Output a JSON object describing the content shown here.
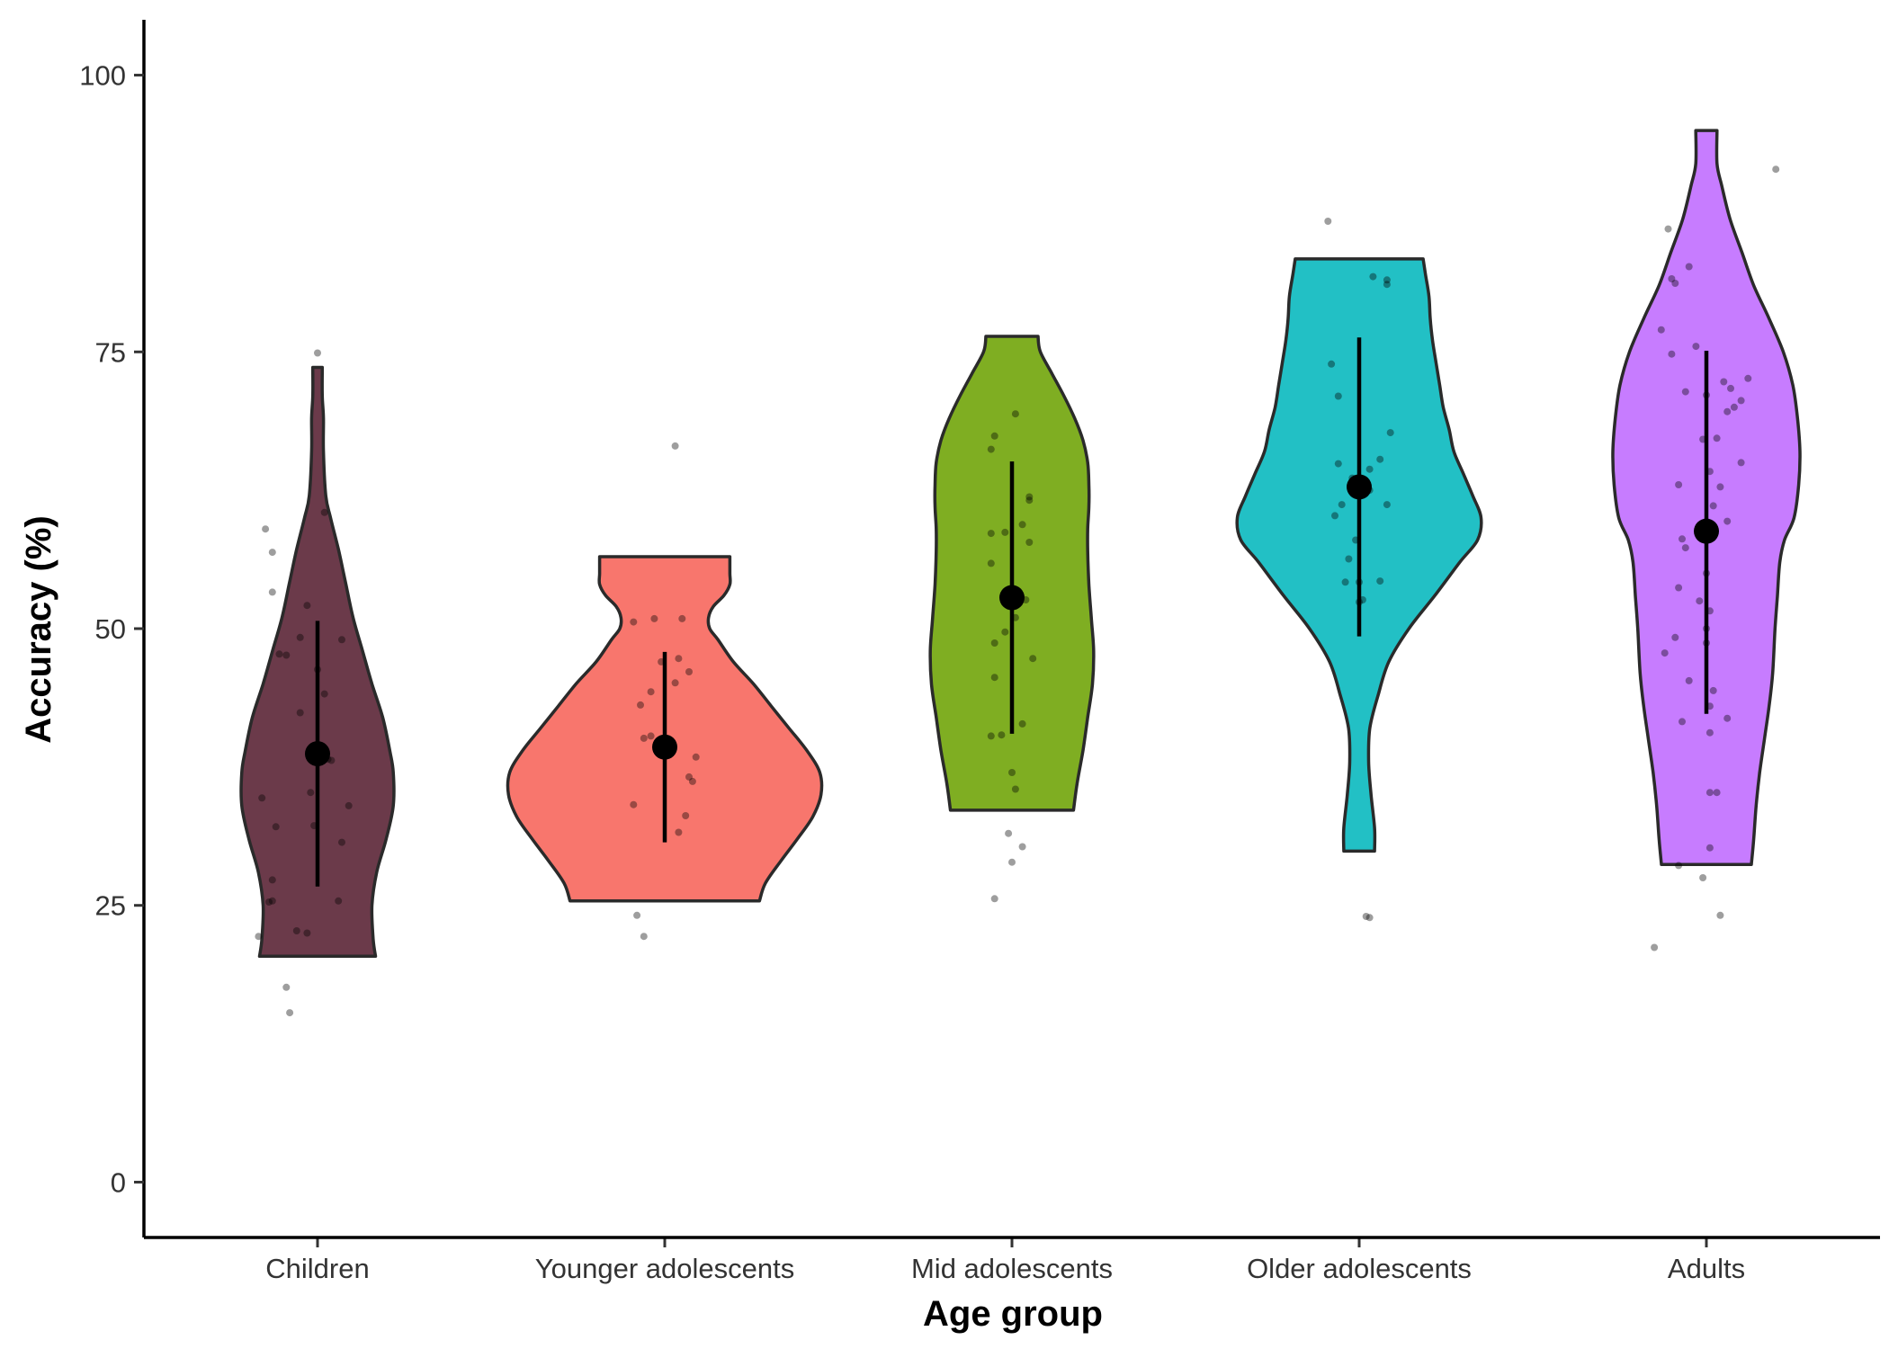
{
  "chart_data": {
    "type": "violin",
    "title": "",
    "xlabel": "Age group",
    "ylabel": "Accuracy (%)",
    "ylim": [
      -5,
      105
    ],
    "yticks": [
      0,
      25,
      50,
      75,
      100
    ],
    "grid": false,
    "legend": "none",
    "categories": [
      "Children",
      "Younger adolescents",
      "Mid adolescents",
      "Older adolescents",
      "Adults"
    ],
    "series": [
      {
        "category": "Children",
        "color": "#6B3A4A",
        "mean": 38.7,
        "error_low": 26.7,
        "error_high": 50.7,
        "violin_range": [
          20.4,
          73.6
        ],
        "density": [
          [
            20.4,
            49
          ],
          [
            22,
            47
          ],
          [
            25,
            46
          ],
          [
            28,
            50
          ],
          [
            31,
            58
          ],
          [
            34,
            64
          ],
          [
            37,
            64
          ],
          [
            39,
            61
          ],
          [
            42,
            55
          ],
          [
            45,
            46
          ],
          [
            48,
            38
          ],
          [
            51,
            30
          ],
          [
            54,
            24
          ],
          [
            57,
            18
          ],
          [
            60,
            11
          ],
          [
            62,
            7
          ],
          [
            66,
            5
          ],
          [
            69,
            5
          ],
          [
            71,
            4
          ],
          [
            73.6,
            4
          ]
        ],
        "points": [
          [
            -0.08,
            15.3
          ],
          [
            -0.09,
            17.6
          ],
          [
            -0.17,
            22.2
          ],
          [
            -0.06,
            22.7
          ],
          [
            -0.03,
            22.5
          ],
          [
            -0.14,
            25.3
          ],
          [
            -0.13,
            25.4
          ],
          [
            0.06,
            25.4
          ],
          [
            -0.13,
            27.3
          ],
          [
            0.07,
            30.7
          ],
          [
            -0.12,
            32.1
          ],
          [
            -0.01,
            32.2
          ],
          [
            -0.16,
            34.7
          ],
          [
            0.09,
            34.0
          ],
          [
            -0.02,
            35.2
          ],
          [
            0.04,
            38.1
          ],
          [
            0.03,
            38.2
          ],
          [
            -0.05,
            42.4
          ],
          [
            0.02,
            44.1
          ],
          [
            -0.09,
            47.6
          ],
          [
            -0.11,
            47.7
          ],
          [
            0.0,
            46.3
          ],
          [
            -0.05,
            49.2
          ],
          [
            0.07,
            49.0
          ],
          [
            -0.03,
            52.1
          ],
          [
            -0.13,
            53.3
          ],
          [
            -0.13,
            56.9
          ],
          [
            -0.15,
            59.0
          ],
          [
            0.02,
            60.5
          ],
          [
            0.0,
            74.9
          ]
        ]
      },
      {
        "category": "Younger adolescents",
        "color": "#F8766D",
        "mean": 39.3,
        "error_low": 30.7,
        "error_high": 47.9,
        "violin_range": [
          25.4,
          56.5
        ],
        "density": [
          [
            25.4,
            80
          ],
          [
            27,
            85
          ],
          [
            29,
            98
          ],
          [
            31,
            112
          ],
          [
            33,
            125
          ],
          [
            35,
            132
          ],
          [
            37,
            131
          ],
          [
            39,
            120
          ],
          [
            41,
            105
          ],
          [
            43,
            90
          ],
          [
            45,
            75
          ],
          [
            47,
            58
          ],
          [
            49,
            45
          ],
          [
            50,
            38
          ],
          [
            51,
            37
          ],
          [
            52,
            41
          ],
          [
            53,
            50
          ],
          [
            54,
            55
          ],
          [
            55,
            55
          ],
          [
            56.5,
            55
          ]
        ],
        "points": [
          [
            -0.06,
            22.2
          ],
          [
            -0.08,
            24.1
          ],
          [
            0.04,
            31.6
          ],
          [
            0.06,
            33.1
          ],
          [
            -0.09,
            34.1
          ],
          [
            0.08,
            36.2
          ],
          [
            0.07,
            36.6
          ],
          [
            0.09,
            38.4
          ],
          [
            -0.06,
            40.1
          ],
          [
            -0.04,
            40.3
          ],
          [
            -0.02,
            39.7
          ],
          [
            0.0,
            39.9
          ],
          [
            -0.07,
            43.1
          ],
          [
            -0.04,
            44.3
          ],
          [
            0.03,
            45.1
          ],
          [
            0.07,
            46.1
          ],
          [
            -0.01,
            47.0
          ],
          [
            0.04,
            47.3
          ],
          [
            -0.03,
            50.9
          ],
          [
            -0.09,
            50.6
          ],
          [
            0.05,
            50.9
          ],
          [
            0.03,
            66.5
          ]
        ]
      },
      {
        "category": "Mid adolescents",
        "color": "#7FAE22",
        "mean": 52.8,
        "error_low": 40.5,
        "error_high": 65.1,
        "violin_range": [
          33.6,
          76.4
        ],
        "density": [
          [
            33.6,
            52
          ],
          [
            36,
            55
          ],
          [
            39,
            60
          ],
          [
            42,
            64
          ],
          [
            45,
            68
          ],
          [
            48,
            69
          ],
          [
            51,
            67
          ],
          [
            54,
            65
          ],
          [
            57,
            64
          ],
          [
            59,
            64
          ],
          [
            61,
            65
          ],
          [
            63,
            65
          ],
          [
            65,
            64
          ],
          [
            67,
            60
          ],
          [
            69,
            53
          ],
          [
            71,
            44
          ],
          [
            73,
            34
          ],
          [
            75,
            24
          ],
          [
            76.4,
            22
          ]
        ],
        "points": [
          [
            -0.05,
            25.6
          ],
          [
            0.0,
            28.9
          ],
          [
            0.03,
            30.3
          ],
          [
            -0.01,
            31.5
          ],
          [
            0.01,
            35.5
          ],
          [
            0.0,
            37.0
          ],
          [
            -0.06,
            40.3
          ],
          [
            -0.03,
            40.4
          ],
          [
            0.03,
            41.4
          ],
          [
            -0.05,
            45.6
          ],
          [
            0.06,
            47.3
          ],
          [
            -0.05,
            48.7
          ],
          [
            -0.02,
            49.7
          ],
          [
            0.01,
            51.0
          ],
          [
            0.04,
            52.6
          ],
          [
            -0.01,
            53.5
          ],
          [
            -0.06,
            55.9
          ],
          [
            0.05,
            57.8
          ],
          [
            -0.06,
            58.6
          ],
          [
            -0.02,
            58.7
          ],
          [
            0.03,
            59.4
          ],
          [
            0.05,
            61.6
          ],
          [
            0.05,
            61.9
          ],
          [
            -0.06,
            66.2
          ],
          [
            -0.05,
            67.4
          ],
          [
            0.01,
            69.4
          ]
        ]
      },
      {
        "category": "Older adolescents",
        "color": "#22C0C5",
        "mean": 62.8,
        "error_low": 49.3,
        "error_high": 76.3,
        "violin_range": [
          29.9,
          83.4
        ],
        "density": [
          [
            29.9,
            13
          ],
          [
            32,
            13
          ],
          [
            35,
            10
          ],
          [
            38,
            8
          ],
          [
            41,
            9
          ],
          [
            44,
            16
          ],
          [
            47,
            25
          ],
          [
            50,
            42
          ],
          [
            53,
            64
          ],
          [
            56,
            85
          ],
          [
            58,
            100
          ],
          [
            60,
            103
          ],
          [
            62,
            96
          ],
          [
            64,
            88
          ],
          [
            66,
            80
          ],
          [
            68,
            76
          ],
          [
            70,
            71
          ],
          [
            72,
            68
          ],
          [
            74,
            65
          ],
          [
            76,
            62
          ],
          [
            78,
            60
          ],
          [
            80,
            59
          ],
          [
            82,
            56
          ],
          [
            83.4,
            54
          ]
        ],
        "points": [
          [
            0.02,
            24.0
          ],
          [
            0.03,
            23.9
          ],
          [
            0.06,
            54.3
          ],
          [
            -0.04,
            54.2
          ],
          [
            0.0,
            52.4
          ],
          [
            0.01,
            52.6
          ],
          [
            0.0,
            54.2
          ],
          [
            -0.03,
            56.3
          ],
          [
            -0.01,
            58.0
          ],
          [
            -0.07,
            60.2
          ],
          [
            0.08,
            61.2
          ],
          [
            -0.05,
            61.2
          ],
          [
            0.03,
            62.5
          ],
          [
            -0.02,
            63.6
          ],
          [
            0.03,
            64.4
          ],
          [
            -0.06,
            64.9
          ],
          [
            0.06,
            65.3
          ],
          [
            0.09,
            67.7
          ],
          [
            -0.06,
            71.0
          ],
          [
            -0.08,
            73.9
          ],
          [
            0.08,
            81.1
          ],
          [
            0.08,
            81.5
          ],
          [
            0.04,
            81.8
          ],
          [
            -0.09,
            86.8
          ]
        ]
      },
      {
        "category": "Adults",
        "color": "#C77CFF",
        "mean": 58.8,
        "error_low": 42.3,
        "error_high": 75.1,
        "violin_range": [
          28.7,
          95.0
        ],
        "density": [
          [
            28.7,
            38
          ],
          [
            31,
            40
          ],
          [
            34,
            42
          ],
          [
            37,
            45
          ],
          [
            40,
            49
          ],
          [
            43,
            53
          ],
          [
            46,
            56
          ],
          [
            50,
            58
          ],
          [
            53,
            60
          ],
          [
            56,
            62
          ],
          [
            58,
            66
          ],
          [
            60,
            74
          ],
          [
            63,
            78
          ],
          [
            66,
            79
          ],
          [
            69,
            77
          ],
          [
            72,
            73
          ],
          [
            75,
            65
          ],
          [
            78,
            53
          ],
          [
            81,
            40
          ],
          [
            84,
            30
          ],
          [
            87,
            20
          ],
          [
            90,
            13
          ],
          [
            92,
            9
          ],
          [
            95,
            9
          ]
        ],
        "points": [
          [
            -0.15,
            21.2
          ],
          [
            0.04,
            24.1
          ],
          [
            -0.08,
            28.6
          ],
          [
            -0.01,
            27.5
          ],
          [
            0.01,
            30.2
          ],
          [
            0.01,
            35.2
          ],
          [
            0.03,
            35.2
          ],
          [
            0.01,
            40.6
          ],
          [
            -0.07,
            41.6
          ],
          [
            0.06,
            41.9
          ],
          [
            0.01,
            43.0
          ],
          [
            0.02,
            44.4
          ],
          [
            -0.05,
            45.3
          ],
          [
            -0.12,
            47.8
          ],
          [
            0.0,
            48.7
          ],
          [
            -0.09,
            49.2
          ],
          [
            0.0,
            50.0
          ],
          [
            0.01,
            51.6
          ],
          [
            -0.08,
            53.7
          ],
          [
            -0.02,
            52.5
          ],
          [
            0.0,
            55.0
          ],
          [
            -0.06,
            57.3
          ],
          [
            -0.07,
            58.1
          ],
          [
            0.01,
            58.7
          ],
          [
            0.06,
            59.7
          ],
          [
            0.02,
            61.1
          ],
          [
            0.04,
            62.8
          ],
          [
            -0.08,
            63.0
          ],
          [
            0.01,
            64.2
          ],
          [
            0.1,
            65.0
          ],
          [
            -0.01,
            67.1
          ],
          [
            0.03,
            67.2
          ],
          [
            0.06,
            69.6
          ],
          [
            0.08,
            70.0
          ],
          [
            0.1,
            70.6
          ],
          [
            0.07,
            71.7
          ],
          [
            -0.06,
            71.4
          ],
          [
            0.0,
            71.1
          ],
          [
            0.12,
            72.6
          ],
          [
            0.05,
            72.3
          ],
          [
            -0.03,
            75.5
          ],
          [
            -0.1,
            74.8
          ],
          [
            -0.13,
            77.0
          ],
          [
            -0.09,
            81.2
          ],
          [
            -0.1,
            81.6
          ],
          [
            -0.05,
            82.7
          ],
          [
            -0.11,
            86.1
          ],
          [
            0.2,
            91.5
          ]
        ]
      }
    ]
  }
}
